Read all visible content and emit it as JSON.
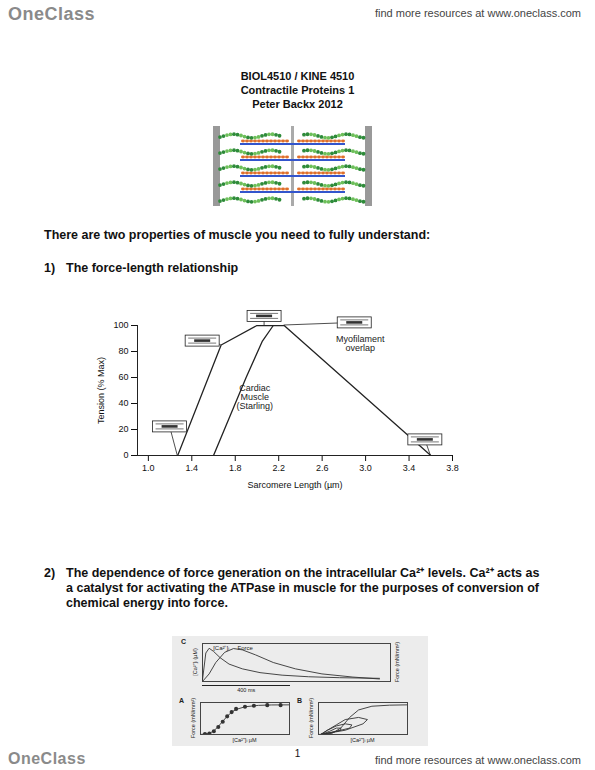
{
  "header": {
    "logo": "OneClass",
    "link_text": "find more resources at www.oneclass.com"
  },
  "title_lines": [
    "BIOL4510 / KINE 4510",
    "Contractile Proteins 1",
    "Peter Backx 2012"
  ],
  "intro": "There are two properties of muscle you need to fully understand:",
  "items": [
    {
      "marker": "1)",
      "text": "The force-length relationship"
    },
    {
      "marker": "2)",
      "text": "The dependence of force generation on the intracellular Ca²⁺ levels.  Ca²⁺ acts as a catalyst for activating the ATPase in muscle for the purposes of conversion of chemical energy into force."
    }
  ],
  "chart_data": [
    {
      "type": "line",
      "xlabel": "Sarcomere Length (µm)",
      "ylabel": "Tension (% Max)",
      "xlim": [
        0.9,
        3.8
      ],
      "ylim": [
        0,
        100
      ],
      "xticks": [
        {
          "value": 1,
          "label": "1.0"
        },
        1.4,
        1.8,
        2.2,
        2.6,
        {
          "value": 3,
          "label": "3.0"
        },
        3.4,
        3.8
      ],
      "yticks": [
        0,
        20,
        40,
        60,
        80,
        100
      ],
      "grid": false,
      "series": [
        {
          "color": "#222222",
          "x": [
            1.27,
            1.67,
            2.0,
            2.25,
            3.6
          ],
          "values": [
            0,
            85,
            100,
            100,
            0
          ]
        },
        {
          "color": "#222222",
          "x": [
            1.6,
            1.75,
            1.9,
            2.05,
            2.15
          ],
          "values": [
            0,
            30,
            60,
            88,
            100
          ]
        }
      ],
      "annotations": [
        {
          "lines": [
            "Myofilament",
            "overlap"
          ],
          "x": 2.95,
          "y": 86
        },
        {
          "lines": [
            "Cardiac",
            "Muscle",
            "(Starling)"
          ],
          "x": 1.98,
          "y": 45
        }
      ],
      "sarcomere_icons": [
        {
          "x": 1.2,
          "y": 22,
          "to": [
            1.27,
            0
          ]
        },
        {
          "x": 1.5,
          "y": 88,
          "to": [
            1.67,
            85
          ]
        },
        {
          "x": 2.07,
          "y": 107,
          "to": [
            2.07,
            100
          ]
        },
        {
          "x": 2.9,
          "y": 102,
          "to": [
            2.25,
            100
          ]
        },
        {
          "x": 3.55,
          "y": 12,
          "to": [
            3.6,
            0
          ]
        }
      ]
    },
    {
      "type": "line",
      "panel": "C",
      "ylabel": "[Ca²⁺]ᵢ (µM)",
      "y2label": "Force (mN/mm²)",
      "tick_labels": false,
      "xlim": [
        0,
        850
      ],
      "ylim": [
        0,
        1.2
      ],
      "y2lim": [
        0,
        30
      ],
      "series": [
        {
          "name": "[Ca²⁺]ᵢ",
          "color": "#333333",
          "x": [
            0,
            15,
            30,
            50,
            80,
            120,
            180,
            260,
            360,
            480,
            620,
            800
          ],
          "values": [
            0.05,
            0.9,
            1.05,
            0.95,
            0.75,
            0.55,
            0.4,
            0.28,
            0.2,
            0.15,
            0.12,
            0.1
          ]
        },
        {
          "name": "Force",
          "axis": "y2",
          "color": "#333333",
          "x": [
            0,
            30,
            60,
            100,
            140,
            180,
            240,
            320,
            420,
            540,
            680,
            800
          ],
          "values": [
            0,
            6,
            15,
            23,
            26,
            25,
            21,
            15,
            10,
            6,
            3.5,
            2
          ]
        }
      ],
      "scale_bar": {
        "value": 400,
        "label": "400 ms"
      }
    },
    {
      "type": "line",
      "panel": "A",
      "xlabel": "[Ca²⁺]ᵢ µM",
      "ylabel": "Force (mN/mm²)",
      "tick_labels": false,
      "xlim": [
        0,
        2
      ],
      "ylim": [
        0,
        30
      ],
      "series": [
        {
          "type": "scatter",
          "marker": "circle",
          "color": "#333333",
          "x": [
            0.1,
            0.2,
            0.3,
            0.4,
            0.5,
            0.6,
            0.7,
            0.8,
            1.0,
            1.2,
            1.5,
            1.8
          ],
          "values": [
            0.5,
            1,
            3,
            7,
            12,
            17,
            21,
            24,
            26,
            27,
            27.5,
            27.5
          ]
        },
        {
          "type": "line",
          "color": "#333333",
          "x": [
            0,
            0.2,
            0.3,
            0.4,
            0.5,
            0.6,
            0.7,
            0.8,
            1.0,
            1.3,
            1.6,
            2.0
          ],
          "values": [
            0,
            1,
            3.5,
            7.5,
            12.5,
            17,
            21,
            23.5,
            26,
            27.3,
            27.7,
            27.8
          ]
        }
      ]
    },
    {
      "type": "line",
      "panel": "B",
      "xlabel": "[Ca²⁺]ᵢ µM",
      "ylabel": "Force (mN/mm²)",
      "tick_labels": false,
      "xlim": [
        0,
        2
      ],
      "ylim": [
        0,
        30
      ],
      "series": [
        {
          "color": "#333333",
          "x": [
            0,
            0.3,
            0.5,
            0.7,
            0.9,
            1.2,
            1.6,
            2.0
          ],
          "values": [
            0,
            1,
            6,
            16,
            23,
            26.5,
            27.5,
            27.8
          ]
        },
        {
          "color": "#333333",
          "x": [
            0.05,
            0.6,
            1.0,
            1.1,
            0.9,
            0.6,
            0.4,
            0.2,
            0.05
          ],
          "values": [
            0,
            4,
            10,
            14,
            16,
            14,
            9,
            4,
            0
          ]
        },
        {
          "color": "#333333",
          "x": [
            0.05,
            0.4,
            0.7,
            0.75,
            0.6,
            0.4,
            0.2,
            0.05
          ],
          "values": [
            0,
            3,
            6,
            9,
            10,
            8,
            4,
            0
          ]
        },
        {
          "color": "#333333",
          "x": [
            0.05,
            0.3,
            0.5,
            0.5,
            0.4,
            0.25,
            0.05
          ],
          "values": [
            0,
            2,
            4,
            6,
            6,
            3,
            0
          ]
        }
      ]
    }
  ],
  "page_number": "1",
  "footer": {
    "logo": "OneClass",
    "link_text": "find more resources at www.oneclass.com"
  }
}
